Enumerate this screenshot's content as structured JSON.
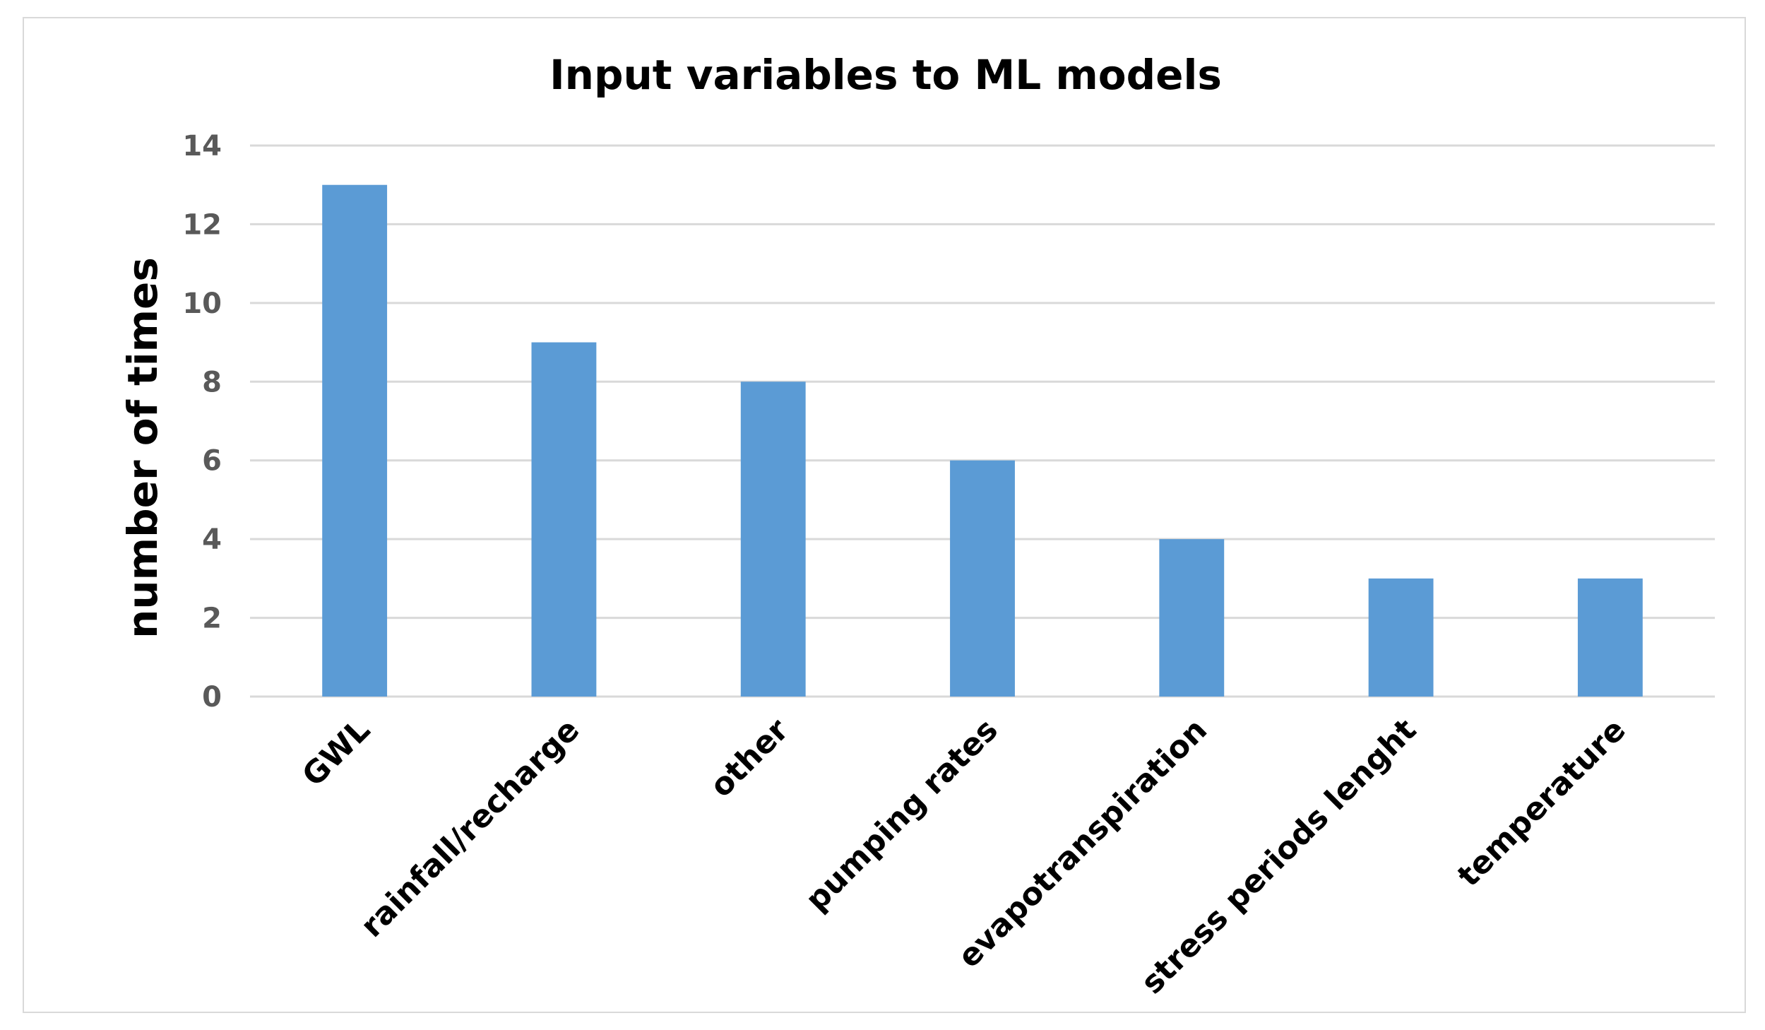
{
  "chart_data": {
    "type": "bar",
    "title": "Input variables to ML models",
    "xlabel": "",
    "ylabel": "number of times",
    "ylim": [
      0,
      14
    ],
    "yticks": [
      0,
      2,
      4,
      6,
      8,
      10,
      12,
      14
    ],
    "grid": true,
    "legend": "none",
    "categories": [
      "GWL",
      "rainfall/recharge",
      "other",
      "pumping rates",
      "evapotranspiration",
      "stress periods lenght",
      "temperature"
    ],
    "values": [
      13,
      9,
      8,
      6,
      4,
      3,
      3
    ],
    "colors": {
      "bar": "#5b9bd5",
      "grid": "#d9d9d9",
      "tick_text": "#595959",
      "title_text": "#000000"
    }
  }
}
